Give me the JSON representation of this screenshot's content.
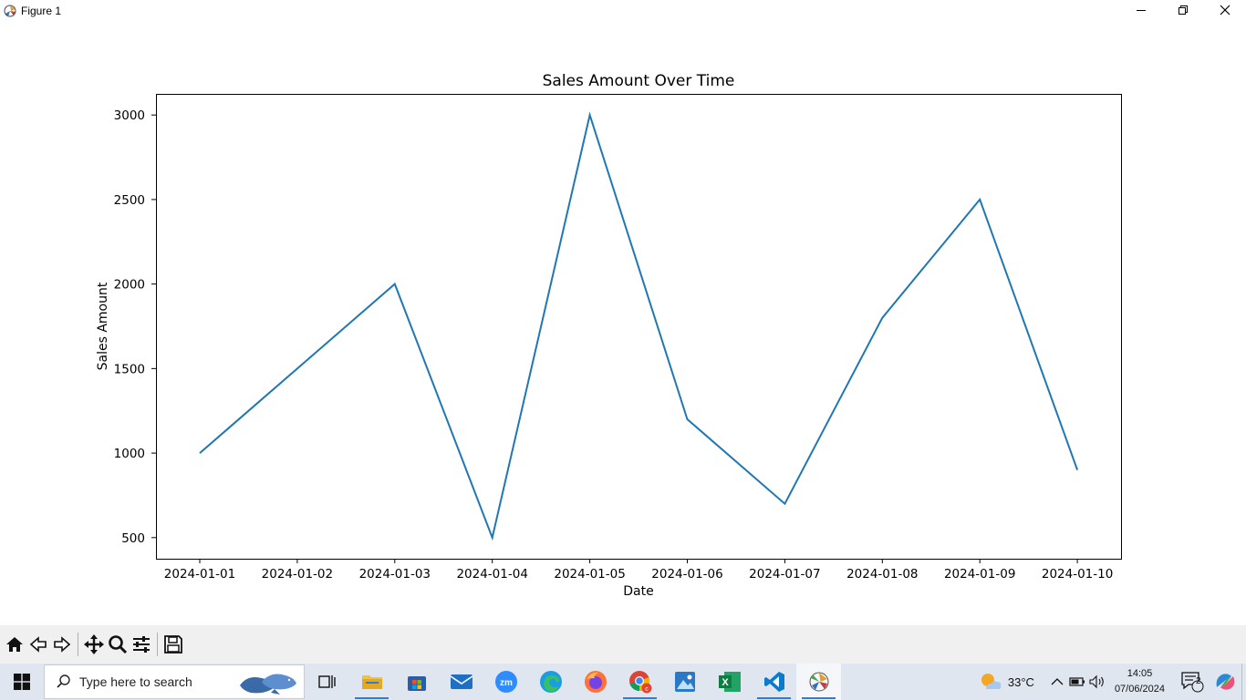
{
  "window": {
    "title": "Figure 1"
  },
  "chart_data": {
    "type": "line",
    "title": "Sales Amount Over Time",
    "xlabel": "Date",
    "ylabel": "Sales Amount",
    "categories": [
      "2024-01-01",
      "2024-01-02",
      "2024-01-03",
      "2024-01-04",
      "2024-01-05",
      "2024-01-06",
      "2024-01-07",
      "2024-01-08",
      "2024-01-09",
      "2024-01-10"
    ],
    "series": [
      {
        "name": "Sales Amount",
        "values": [
          1000,
          1500,
          2000,
          500,
          3000,
          1200,
          700,
          1800,
          2500,
          900
        ],
        "color": "#1f77b4"
      }
    ],
    "yticks": [
      500,
      1000,
      1500,
      2000,
      2500,
      3000
    ],
    "ylim": [
      375,
      3125
    ],
    "grid": false,
    "legend": "none"
  },
  "toolbar": {
    "buttons": [
      "home-icon",
      "back-icon",
      "forward-icon",
      "pan-icon",
      "zoom-icon",
      "configure-subplots-icon",
      "save-icon"
    ]
  },
  "taskbar": {
    "search_placeholder": "Type here to search",
    "weather": {
      "temp": "33°C"
    },
    "clock": {
      "time": "14:05",
      "date": "07/06/2024"
    },
    "notifications": {
      "count": "2"
    }
  }
}
